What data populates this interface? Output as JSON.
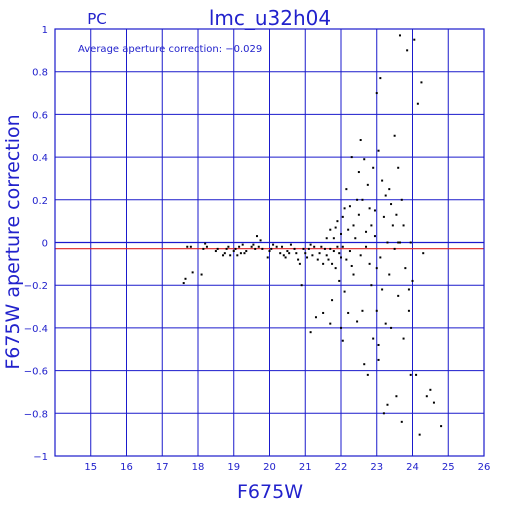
{
  "colors": {
    "axes": "#1a1acc",
    "grid": "#1a1acc",
    "points": "#000000",
    "mean_line": "#dd2222",
    "text": "#2222cc"
  },
  "chart_data": {
    "type": "scatter",
    "header_left": "PC",
    "title": "lmc_u32h04",
    "annotation": "Average aperture correction: −0.029",
    "xlabel": "F675W",
    "ylabel": "F675W aperture correction",
    "xlim": [
      14,
      26
    ],
    "ylim": [
      -1,
      1
    ],
    "x_ticks": [
      15,
      16,
      17,
      18,
      19,
      20,
      21,
      22,
      23,
      24,
      25,
      26
    ],
    "y_ticks": [
      -1,
      -0.8,
      -0.6,
      -0.4,
      -0.2,
      0,
      0.2,
      0.4,
      0.6,
      0.8,
      1
    ],
    "y_tick_labels": [
      "−1",
      "−0.8",
      "−0.6",
      "−0.4",
      "−0.2",
      "0",
      "0.2",
      "0.4",
      "0.6",
      "0.8",
      "1"
    ],
    "grid": true,
    "reference_lines": [
      {
        "y": 0,
        "color": "#1a1acc"
      },
      {
        "y": -0.029,
        "color": "#dd2222"
      }
    ],
    "points": [
      [
        17.6,
        -0.19
      ],
      [
        17.65,
        -0.17
      ],
      [
        17.7,
        -0.02
      ],
      [
        17.8,
        -0.02
      ],
      [
        17.85,
        -0.14
      ],
      [
        18.1,
        -0.15
      ],
      [
        18.15,
        -0.03
      ],
      [
        18.2,
        -0.005
      ],
      [
        18.25,
        -0.02
      ],
      [
        18.5,
        -0.04
      ],
      [
        18.55,
        -0.03
      ],
      [
        18.7,
        -0.06
      ],
      [
        18.75,
        -0.05
      ],
      [
        18.8,
        -0.03
      ],
      [
        18.85,
        -0.02
      ],
      [
        18.9,
        -0.06
      ],
      [
        19.0,
        -0.04
      ],
      [
        19.05,
        -0.03
      ],
      [
        19.1,
        -0.06
      ],
      [
        19.15,
        -0.02
      ],
      [
        19.2,
        -0.05
      ],
      [
        19.25,
        -0.01
      ],
      [
        19.3,
        -0.05
      ],
      [
        19.35,
        -0.04
      ],
      [
        19.5,
        -0.02
      ],
      [
        19.55,
        -0.01
      ],
      [
        19.6,
        -0.03
      ],
      [
        19.65,
        0.03
      ],
      [
        19.7,
        -0.02
      ],
      [
        19.75,
        0.01
      ],
      [
        19.8,
        -0.03
      ],
      [
        19.95,
        -0.07
      ],
      [
        20.0,
        -0.04
      ],
      [
        20.05,
        -0.03
      ],
      [
        20.1,
        -0.01
      ],
      [
        20.2,
        -0.02
      ],
      [
        20.3,
        -0.05
      ],
      [
        20.35,
        -0.02
      ],
      [
        20.4,
        -0.06
      ],
      [
        20.45,
        -0.07
      ],
      [
        20.5,
        -0.04
      ],
      [
        20.55,
        -0.05
      ],
      [
        20.6,
        -0.01
      ],
      [
        20.7,
        -0.03
      ],
      [
        20.75,
        -0.05
      ],
      [
        20.8,
        -0.08
      ],
      [
        20.85,
        -0.1
      ],
      [
        20.9,
        -0.2
      ],
      [
        20.95,
        -0.03
      ],
      [
        21.0,
        -0.05
      ],
      [
        21.05,
        -0.07
      ],
      [
        21.1,
        -0.03
      ],
      [
        21.15,
        -0.01
      ],
      [
        21.15,
        -0.42
      ],
      [
        21.2,
        -0.06
      ],
      [
        21.25,
        -0.02
      ],
      [
        21.3,
        -0.35
      ],
      [
        21.35,
        -0.08
      ],
      [
        21.4,
        -0.05
      ],
      [
        21.45,
        -0.02
      ],
      [
        21.5,
        -0.1
      ],
      [
        21.5,
        -0.33
      ],
      [
        21.55,
        -0.03
      ],
      [
        21.6,
        -0.06
      ],
      [
        21.6,
        0.02
      ],
      [
        21.65,
        -0.08
      ],
      [
        21.7,
        -0.03
      ],
      [
        21.7,
        0.06
      ],
      [
        21.75,
        -0.1
      ],
      [
        21.75,
        -0.27
      ],
      [
        21.8,
        -0.04
      ],
      [
        21.8,
        0.02
      ],
      [
        21.85,
        -0.12
      ],
      [
        21.85,
        0.07
      ],
      [
        21.9,
        -0.02
      ],
      [
        21.9,
        0.1
      ],
      [
        21.95,
        -0.05
      ],
      [
        21.95,
        -0.18
      ],
      [
        22.0,
        -0.4
      ],
      [
        22.0,
        -0.07
      ],
      [
        22.0,
        0.04
      ],
      [
        22.05,
        -0.46
      ],
      [
        22.05,
        -0.02
      ],
      [
        22.05,
        0.12
      ],
      [
        22.1,
        0.16
      ],
      [
        22.1,
        -0.23
      ],
      [
        22.15,
        -0.08
      ],
      [
        22.2,
        -0.33
      ],
      [
        22.2,
        0.06
      ],
      [
        22.25,
        0.17
      ],
      [
        22.25,
        -0.04
      ],
      [
        22.3,
        0.4
      ],
      [
        22.3,
        -0.11
      ],
      [
        22.35,
        -0.15
      ],
      [
        22.35,
        0.08
      ],
      [
        22.4,
        0.02
      ],
      [
        22.45,
        -0.37
      ],
      [
        22.45,
        0.2
      ],
      [
        22.5,
        0.13
      ],
      [
        22.5,
        0.33
      ],
      [
        22.55,
        -0.06
      ],
      [
        22.55,
        0.48
      ],
      [
        22.6,
        -0.32
      ],
      [
        22.6,
        0.2
      ],
      [
        22.65,
        0.39
      ],
      [
        22.65,
        -0.57
      ],
      [
        22.7,
        -0.02
      ],
      [
        22.75,
        0.27
      ],
      [
        22.75,
        -0.62
      ],
      [
        22.8,
        0.16
      ],
      [
        22.8,
        -0.1
      ],
      [
        22.85,
        0.08
      ],
      [
        22.85,
        -0.2
      ],
      [
        22.9,
        0.35
      ],
      [
        22.9,
        -0.45
      ],
      [
        22.95,
        0.03
      ],
      [
        22.95,
        0.15
      ],
      [
        23.0,
        -0.12
      ],
      [
        23.0,
        0.7
      ],
      [
        23.0,
        -0.32
      ],
      [
        23.05,
        0.43
      ],
      [
        23.05,
        -0.55
      ],
      [
        23.1,
        0.77
      ],
      [
        23.1,
        -0.07
      ],
      [
        23.15,
        0.29
      ],
      [
        23.15,
        -0.22
      ],
      [
        23.2,
        -0.8
      ],
      [
        23.2,
        0.12
      ],
      [
        23.25,
        -0.38
      ],
      [
        23.25,
        0.22
      ],
      [
        23.3,
        0.0
      ],
      [
        23.3,
        -0.76
      ],
      [
        23.35,
        0.25
      ],
      [
        23.35,
        -0.15
      ],
      [
        23.4,
        0.18
      ],
      [
        23.4,
        -0.4
      ],
      [
        23.45,
        0.08
      ],
      [
        23.5,
        -0.03
      ],
      [
        23.5,
        0.5
      ],
      [
        23.55,
        0.13
      ],
      [
        23.55,
        -0.72
      ],
      [
        23.6,
        0.35
      ],
      [
        23.6,
        -0.25
      ],
      [
        23.65,
        0.97
      ],
      [
        23.65,
        0.0
      ],
      [
        23.7,
        -0.84
      ],
      [
        23.7,
        0.2
      ],
      [
        23.75,
        0.08
      ],
      [
        23.75,
        -0.45
      ],
      [
        23.8,
        -0.12
      ],
      [
        23.85,
        0.9
      ],
      [
        23.9,
        -0.22
      ],
      [
        23.9,
        -0.32
      ],
      [
        23.95,
        0.0
      ],
      [
        23.95,
        -0.62
      ],
      [
        24.0,
        -0.18
      ],
      [
        24.05,
        0.95
      ],
      [
        24.1,
        -0.62
      ],
      [
        24.15,
        0.65
      ],
      [
        24.2,
        -0.9
      ],
      [
        24.25,
        0.75
      ],
      [
        24.3,
        -0.05
      ],
      [
        24.4,
        -0.72
      ],
      [
        24.5,
        -0.69
      ],
      [
        24.6,
        -0.75
      ],
      [
        24.8,
        -0.86
      ],
      [
        21.7,
        -0.38
      ],
      [
        22.15,
        0.25
      ],
      [
        22.7,
        0.05
      ],
      [
        23.05,
        -0.48
      ],
      [
        23.6,
        0.0
      ]
    ]
  }
}
